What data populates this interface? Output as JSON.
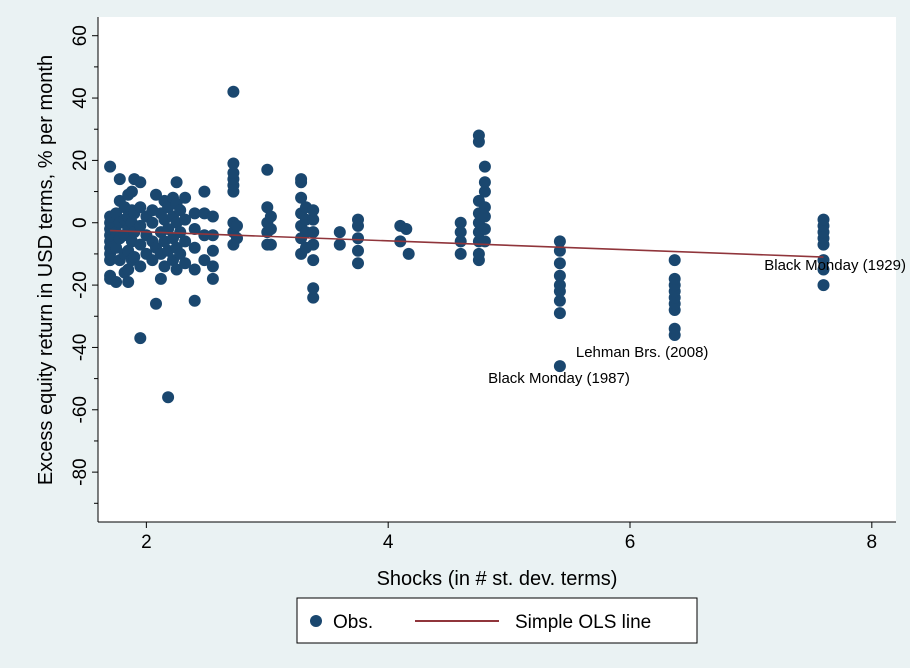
{
  "chart_data": {
    "type": "scatter",
    "title": "",
    "xlabel": "Shocks (in # st. dev. terms)",
    "ylabel": "Excess equity return in USD terms, % per month",
    "xlim": [
      1.6,
      8.2
    ],
    "ylim": [
      -96,
      66
    ],
    "xticks": [
      2,
      4,
      6,
      8
    ],
    "yticks": [
      60,
      40,
      20,
      0,
      -20,
      -40,
      -60,
      -80
    ],
    "grid": false,
    "legend_position": "bottom",
    "colors": {
      "obs": "#1a476f",
      "ols": "#90353b",
      "plot_bg": "#ffffff",
      "page_bg": "#eaf2f3"
    },
    "series": [
      {
        "name": "Obs.",
        "kind": "scatter",
        "points": [
          [
            1.7,
            -18
          ],
          [
            1.7,
            -17
          ],
          [
            1.7,
            -12
          ],
          [
            1.7,
            -10
          ],
          [
            1.7,
            -8
          ],
          [
            1.7,
            -6
          ],
          [
            1.7,
            -4
          ],
          [
            1.7,
            -2
          ],
          [
            1.7,
            0
          ],
          [
            1.7,
            2
          ],
          [
            1.7,
            18
          ],
          [
            1.75,
            -19
          ],
          [
            1.75,
            -8
          ],
          [
            1.75,
            -3
          ],
          [
            1.75,
            3
          ],
          [
            1.78,
            -12
          ],
          [
            1.78,
            -5
          ],
          [
            1.78,
            0
          ],
          [
            1.78,
            7
          ],
          [
            1.78,
            14
          ],
          [
            1.82,
            -16
          ],
          [
            1.82,
            -10
          ],
          [
            1.82,
            -4
          ],
          [
            1.82,
            1
          ],
          [
            1.82,
            5
          ],
          [
            1.85,
            -19
          ],
          [
            1.85,
            -15
          ],
          [
            1.85,
            -9
          ],
          [
            1.85,
            -2
          ],
          [
            1.85,
            2
          ],
          [
            1.85,
            9
          ],
          [
            1.88,
            -12
          ],
          [
            1.88,
            -6
          ],
          [
            1.88,
            0
          ],
          [
            1.88,
            4
          ],
          [
            1.88,
            10
          ],
          [
            1.9,
            -11
          ],
          [
            1.9,
            -3
          ],
          [
            1.9,
            3
          ],
          [
            1.9,
            14
          ],
          [
            1.95,
            -14
          ],
          [
            1.95,
            -7
          ],
          [
            1.95,
            -1
          ],
          [
            1.95,
            5
          ],
          [
            1.95,
            13
          ],
          [
            1.95,
            -37
          ],
          [
            2.0,
            -10
          ],
          [
            2.0,
            -4
          ],
          [
            2.0,
            2
          ],
          [
            2.05,
            -12
          ],
          [
            2.05,
            -6
          ],
          [
            2.05,
            0
          ],
          [
            2.05,
            4
          ],
          [
            2.08,
            -26
          ],
          [
            2.08,
            -8
          ],
          [
            2.08,
            9
          ],
          [
            2.12,
            -18
          ],
          [
            2.12,
            -10
          ],
          [
            2.12,
            -3
          ],
          [
            2.12,
            3
          ],
          [
            2.15,
            -14
          ],
          [
            2.15,
            -6
          ],
          [
            2.15,
            1
          ],
          [
            2.15,
            7
          ],
          [
            2.18,
            -56
          ],
          [
            2.18,
            -9
          ],
          [
            2.18,
            -2
          ],
          [
            2.18,
            5
          ],
          [
            2.22,
            -12
          ],
          [
            2.22,
            -5
          ],
          [
            2.22,
            2
          ],
          [
            2.22,
            8
          ],
          [
            2.25,
            -15
          ],
          [
            2.25,
            -8
          ],
          [
            2.25,
            0
          ],
          [
            2.25,
            6
          ],
          [
            2.25,
            13
          ],
          [
            2.28,
            -10
          ],
          [
            2.28,
            -3
          ],
          [
            2.28,
            4
          ],
          [
            2.32,
            -13
          ],
          [
            2.32,
            -6
          ],
          [
            2.32,
            1
          ],
          [
            2.32,
            8
          ],
          [
            2.4,
            -25
          ],
          [
            2.4,
            -15
          ],
          [
            2.4,
            -8
          ],
          [
            2.4,
            -2
          ],
          [
            2.4,
            3
          ],
          [
            2.48,
            -12
          ],
          [
            2.48,
            -4
          ],
          [
            2.48,
            3
          ],
          [
            2.48,
            10
          ],
          [
            2.55,
            -18
          ],
          [
            2.55,
            -14
          ],
          [
            2.55,
            -9
          ],
          [
            2.55,
            -4
          ],
          [
            2.55,
            2
          ],
          [
            2.72,
            -7
          ],
          [
            2.72,
            -3
          ],
          [
            2.72,
            0
          ],
          [
            2.72,
            10
          ],
          [
            2.72,
            12
          ],
          [
            2.72,
            14
          ],
          [
            2.72,
            16
          ],
          [
            2.72,
            19
          ],
          [
            2.72,
            42
          ],
          [
            2.75,
            -5
          ],
          [
            2.75,
            -1
          ],
          [
            3.0,
            -7
          ],
          [
            3.0,
            -3
          ],
          [
            3.0,
            0
          ],
          [
            3.0,
            5
          ],
          [
            3.0,
            17
          ],
          [
            3.03,
            -7
          ],
          [
            3.03,
            -2
          ],
          [
            3.03,
            2
          ],
          [
            3.28,
            -10
          ],
          [
            3.28,
            -5
          ],
          [
            3.28,
            -1
          ],
          [
            3.28,
            3
          ],
          [
            3.28,
            8
          ],
          [
            3.28,
            13
          ],
          [
            3.28,
            14
          ],
          [
            3.32,
            -8
          ],
          [
            3.32,
            -3
          ],
          [
            3.32,
            1
          ],
          [
            3.32,
            5
          ],
          [
            3.38,
            -24
          ],
          [
            3.38,
            -21
          ],
          [
            3.38,
            -12
          ],
          [
            3.38,
            -7
          ],
          [
            3.38,
            -3
          ],
          [
            3.38,
            1
          ],
          [
            3.38,
            4
          ],
          [
            3.6,
            -7
          ],
          [
            3.6,
            -3
          ],
          [
            3.75,
            -13
          ],
          [
            3.75,
            -9
          ],
          [
            3.75,
            -5
          ],
          [
            3.75,
            -1
          ],
          [
            3.75,
            1
          ],
          [
            4.1,
            -6
          ],
          [
            4.1,
            -1
          ],
          [
            4.15,
            -2
          ],
          [
            4.17,
            -10
          ],
          [
            4.6,
            -10
          ],
          [
            4.6,
            -6
          ],
          [
            4.6,
            -3
          ],
          [
            4.6,
            0
          ],
          [
            4.75,
            -12
          ],
          [
            4.75,
            -10
          ],
          [
            4.75,
            -6
          ],
          [
            4.75,
            -3
          ],
          [
            4.75,
            0
          ],
          [
            4.75,
            3
          ],
          [
            4.75,
            7
          ],
          [
            4.75,
            26
          ],
          [
            4.75,
            28
          ],
          [
            4.8,
            -6
          ],
          [
            4.8,
            -2
          ],
          [
            4.8,
            2
          ],
          [
            4.8,
            5
          ],
          [
            4.8,
            10
          ],
          [
            4.8,
            13
          ],
          [
            4.8,
            18
          ],
          [
            5.42,
            -46
          ],
          [
            5.42,
            -29
          ],
          [
            5.42,
            -25
          ],
          [
            5.42,
            -22
          ],
          [
            5.42,
            -20
          ],
          [
            5.42,
            -17
          ],
          [
            5.42,
            -13
          ],
          [
            5.42,
            -9
          ],
          [
            5.42,
            -6
          ],
          [
            6.37,
            -36
          ],
          [
            6.37,
            -34
          ],
          [
            6.37,
            -28
          ],
          [
            6.37,
            -26
          ],
          [
            6.37,
            -24
          ],
          [
            6.37,
            -22
          ],
          [
            6.37,
            -20
          ],
          [
            6.37,
            -18
          ],
          [
            6.37,
            -12
          ],
          [
            7.6,
            -20
          ],
          [
            7.6,
            -15
          ],
          [
            7.6,
            -12
          ],
          [
            7.6,
            -7
          ],
          [
            7.6,
            -5
          ],
          [
            7.6,
            -3
          ],
          [
            7.6,
            -1
          ],
          [
            7.6,
            1
          ]
        ]
      },
      {
        "name": "Simple OLS line",
        "kind": "line",
        "points": [
          [
            1.7,
            -2.5
          ],
          [
            7.6,
            -11
          ]
        ]
      }
    ],
    "annotations": [
      {
        "text": "Black Monday (1929)",
        "x": 7.6,
        "y": -20
      },
      {
        "text": "Lehman Brs. (2008)",
        "x": 5.42,
        "y": -46
      },
      {
        "text": "Black Monday (1987)",
        "x": 5.42,
        "y": -46
      }
    ]
  }
}
